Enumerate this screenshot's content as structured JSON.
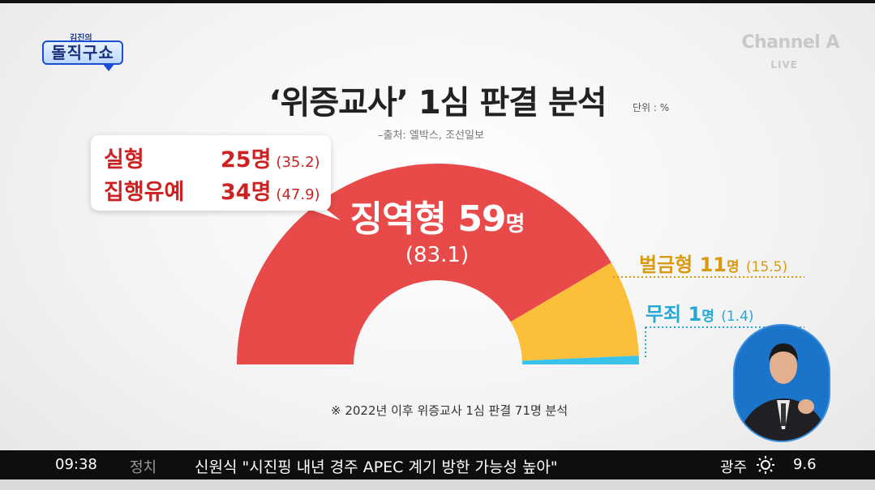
{
  "branding": {
    "show_small": "김진의",
    "show_main": "돌직구쇼",
    "channel": "Channel A",
    "live": "LIVE"
  },
  "title": "‘위증교사’ 1심 판결 분석",
  "unit": "단위 : %",
  "source": "–출처: 엘박스, 조선일보",
  "callout": {
    "row1_label": "실형",
    "row1_count": "25명",
    "row1_pct": "(35.2)",
    "row2_label": "집행유예",
    "row2_count": "34명",
    "row2_pct": "(47.9)"
  },
  "labels": {
    "prison_name": "징역형",
    "prison_num": "59",
    "prison_unit": "명",
    "prison_pct": "(83.1)",
    "fine_name": "벌금형",
    "fine_num": "11",
    "fine_unit": "명",
    "fine_pct": "(15.5)",
    "acquit_name": "무죄",
    "acquit_num": "1",
    "acquit_unit": "명",
    "acquit_pct": "(1.4)"
  },
  "footnote": "※ 2022년 이후 위증교사 1심 판결 71명 분석",
  "ticker": {
    "time": "09:38",
    "category": "정치",
    "headline": "신원식 \"시진핑 내년 경주 APEC 계기 방한 가능성 높아\"",
    "region": "광주",
    "temp": "9.6"
  },
  "colors": {
    "prison": "#e84a4a",
    "fine": "#fbbf3a",
    "acquit": "#3ac3ea",
    "fine_text": "#d99a10",
    "acquit_text": "#22a9d6"
  },
  "chart_data": {
    "type": "pie",
    "style": "half-donut",
    "title": "‘위증교사’ 1심 판결 분석",
    "unit": "%",
    "categories": [
      "징역형",
      "벌금형",
      "무죄"
    ],
    "counts": [
      59,
      11,
      1
    ],
    "values": [
      83.1,
      15.5,
      1.4
    ],
    "sub_breakdown": {
      "parent": "징역형",
      "categories": [
        "실형",
        "집행유예"
      ],
      "counts": [
        25,
        34
      ],
      "values": [
        35.2,
        47.9
      ]
    }
  }
}
